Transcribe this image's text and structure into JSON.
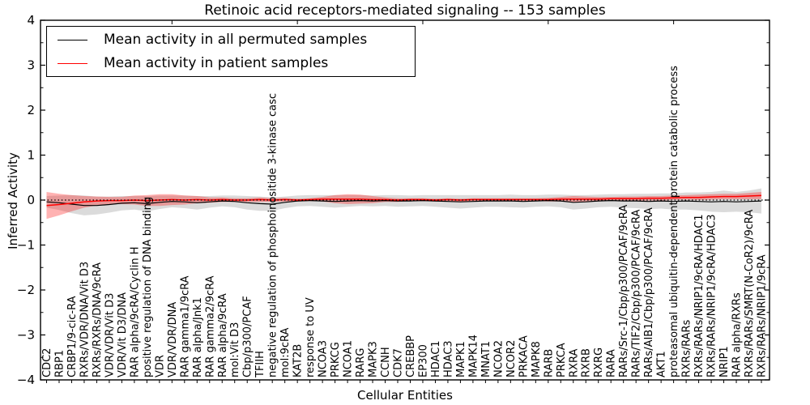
{
  "figure": {
    "title": "Retinoic acid receptors-mediated signaling -- 153 samples",
    "xlabel": "Cellular Entities",
    "ylabel": "Inferred Activity"
  },
  "legend": {
    "entries": [
      {
        "label": "Mean activity in all permuted samples",
        "color": "#000000"
      },
      {
        "label": "Mean activity in patient samples",
        "color": "#ff0000"
      }
    ],
    "position": "upper left"
  },
  "chart_data": {
    "type": "line",
    "title": "Retinoic acid receptors-mediated signaling -- 153 samples",
    "xlabel": "Cellular Entities",
    "ylabel": "Inferred Activity",
    "ylim": [
      -4,
      4
    ],
    "yticks": [
      4,
      3,
      2,
      1,
      0,
      -1,
      -2,
      -3,
      -4
    ],
    "grid": false,
    "zero_line": {
      "y": 0,
      "style": "dotted",
      "color": "#000000"
    },
    "categories": [
      "CDC2",
      "RBP1",
      "CRBP1/9-cic-RA",
      "RXRs/VDR/DNA/Vit D3",
      "RXRs/RXRs/DNA/9cRA",
      "VDR/VDR/Vit D3",
      "VDR/Vit D3/DNA",
      "RAR alpha/9cRA/Cyclin H",
      "positive regulation of DNA binding",
      "VDR",
      "VDR/VDR/DNA",
      "RAR gamma1/9cRA",
      "RAR alpha/Jnk1",
      "RAR gamma2/9cRA",
      "RAR alpha/9cRA",
      "mol:Vit D3",
      "Cbp/p300/PCAF",
      "TFIIH",
      "negative regulation of phosphoinositide 3-kinase casc",
      "mol:9cRA",
      "KAT2B",
      "response to UV",
      "NCOA3",
      "PRKCG",
      "NCOA1",
      "RARG",
      "MAPK3",
      "CCNH",
      "CDK7",
      "CREBBP",
      "EP300",
      "HDAC1",
      "HDAC3",
      "MAPK1",
      "MAPK14",
      "MNAT1",
      "NCOA2",
      "NCOR2",
      "PRKACA",
      "MAPK8",
      "RARB",
      "PRKCA",
      "RXRA",
      "RXRB",
      "RXRG",
      "RARA",
      "RARs/Src-1/Cbp/p300/PCAF/9cRA",
      "RARs/TIF2/Cbp/p300/PCAF/9cRA",
      "RARs/AIB1/Cbp/p300/PCAF/9cRA",
      "AKT1",
      "proteasomal ubiquitin-dependent protein catabolic process",
      "RXRs/RARs",
      "RXRs/RARs/NRIP1/9cRA/HDAC1",
      "RXRs/RARs/NRIP1/9cRA/HDAC3",
      "NRIP1",
      "RAR alpha/RXRs",
      "RXRs/RARs/SMRT(N-CoR2)/9cRA",
      "RXRs/RARs/NRIP1/9cRA"
    ],
    "series": [
      {
        "name": "Mean activity in all permuted samples",
        "color": "#000000",
        "band_color": "#888888",
        "band_opacity": 0.3,
        "mean": [
          -0.04,
          -0.06,
          -0.09,
          -0.12,
          -0.12,
          -0.1,
          -0.07,
          -0.06,
          -0.08,
          -0.05,
          -0.03,
          -0.04,
          -0.06,
          -0.04,
          -0.02,
          -0.03,
          -0.06,
          -0.08,
          -0.09,
          -0.05,
          -0.02,
          -0.01,
          -0.02,
          -0.03,
          -0.02,
          -0.01,
          -0.02,
          -0.01,
          -0.02,
          -0.02,
          -0.01,
          -0.02,
          -0.03,
          -0.04,
          -0.03,
          -0.02,
          -0.02,
          -0.02,
          -0.03,
          -0.02,
          -0.01,
          -0.02,
          -0.05,
          -0.04,
          -0.02,
          -0.01,
          -0.02,
          -0.02,
          -0.03,
          -0.02,
          -0.03,
          -0.02,
          -0.03,
          -0.04,
          -0.03,
          -0.04,
          -0.03,
          -0.02
        ],
        "std": [
          0.13,
          0.16,
          0.2,
          0.22,
          0.2,
          0.18,
          0.16,
          0.15,
          0.17,
          0.15,
          0.13,
          0.14,
          0.15,
          0.13,
          0.12,
          0.13,
          0.15,
          0.16,
          0.15,
          0.13,
          0.12,
          0.12,
          0.13,
          0.14,
          0.13,
          0.12,
          0.12,
          0.12,
          0.13,
          0.12,
          0.12,
          0.13,
          0.14,
          0.15,
          0.14,
          0.13,
          0.13,
          0.14,
          0.14,
          0.13,
          0.13,
          0.14,
          0.16,
          0.15,
          0.14,
          0.14,
          0.15,
          0.16,
          0.17,
          0.17,
          0.18,
          0.19,
          0.2,
          0.22,
          0.24,
          0.22,
          0.24,
          0.28
        ]
      },
      {
        "name": "Mean activity in patient samples",
        "color": "#ff0000",
        "band_color": "#ff0000",
        "band_opacity": 0.3,
        "mean": [
          -0.12,
          -0.1,
          -0.07,
          -0.04,
          -0.02,
          -0.01,
          -0.01,
          0.0,
          -0.01,
          0.0,
          0.01,
          0.0,
          0.01,
          0.0,
          0.01,
          0.0,
          0.0,
          0.01,
          0.0,
          0.01,
          0.0,
          0.01,
          0.02,
          0.02,
          0.02,
          0.02,
          0.01,
          0.01,
          0.0,
          0.01,
          0.01,
          0.0,
          0.01,
          0.0,
          0.01,
          0.01,
          0.01,
          0.01,
          0.01,
          0.01,
          0.01,
          0.02,
          0.02,
          0.02,
          0.02,
          0.03,
          0.03,
          0.03,
          0.04,
          0.04,
          0.05,
          0.06,
          0.06,
          0.07,
          0.08,
          0.08,
          0.09,
          0.1
        ],
        "std": [
          0.3,
          0.24,
          0.18,
          0.13,
          0.1,
          0.08,
          0.08,
          0.1,
          0.12,
          0.13,
          0.12,
          0.1,
          0.08,
          0.06,
          0.05,
          0.04,
          0.04,
          0.05,
          0.04,
          0.04,
          0.03,
          0.03,
          0.05,
          0.09,
          0.11,
          0.1,
          0.08,
          0.05,
          0.04,
          0.03,
          0.03,
          0.03,
          0.03,
          0.03,
          0.03,
          0.03,
          0.03,
          0.03,
          0.03,
          0.03,
          0.04,
          0.05,
          0.07,
          0.06,
          0.05,
          0.04,
          0.05,
          0.05,
          0.05,
          0.05,
          0.05,
          0.05,
          0.06,
          0.06,
          0.06,
          0.06,
          0.07,
          0.08
        ]
      }
    ]
  }
}
